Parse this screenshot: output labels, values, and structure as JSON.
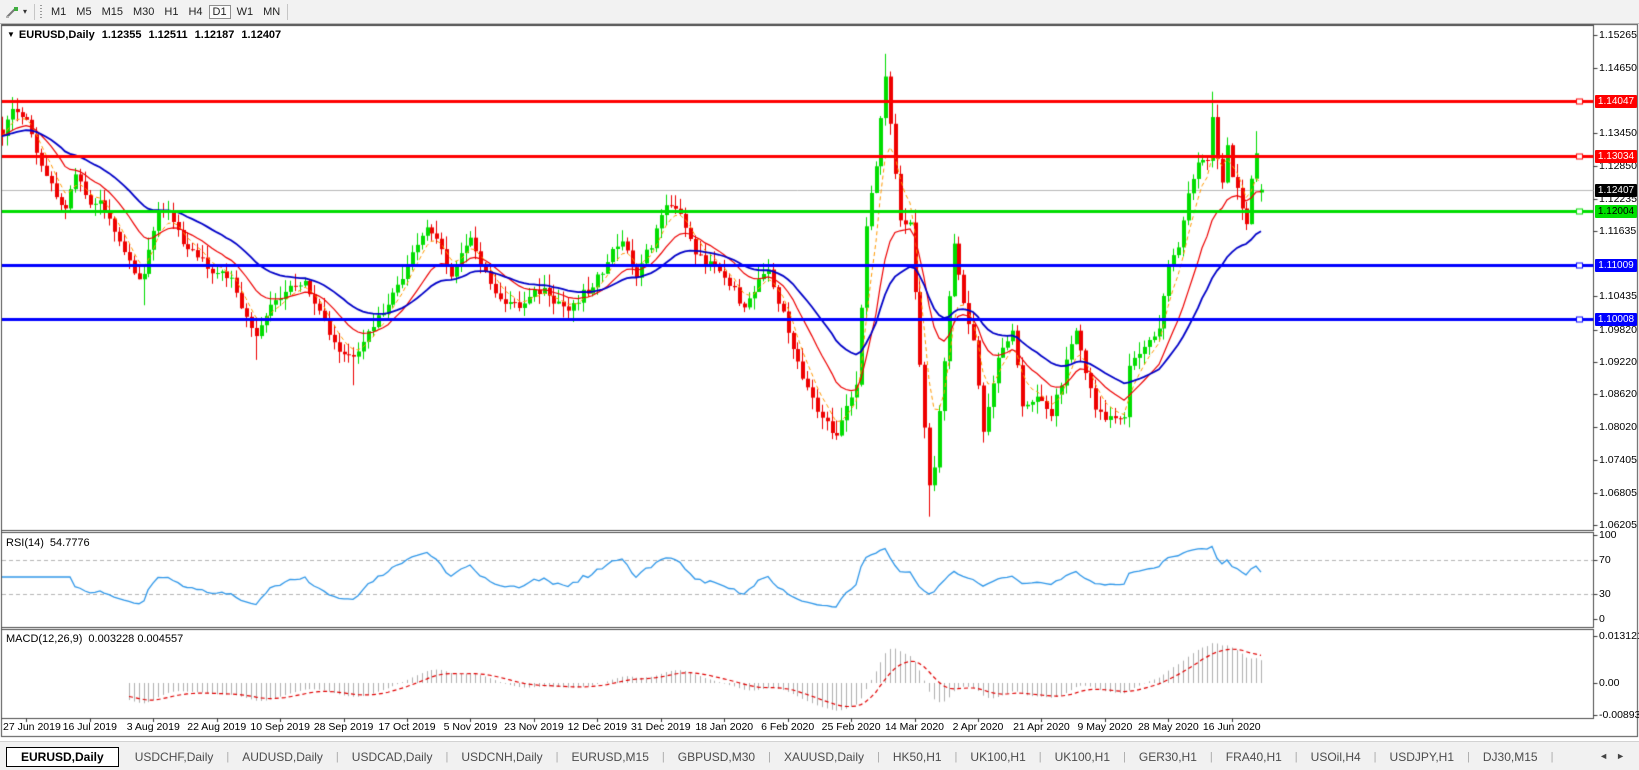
{
  "toolbar": {
    "tool_icon": "draw-tool",
    "timeframes": [
      "M1",
      "M5",
      "M15",
      "M30",
      "H1",
      "H4",
      "D1",
      "W1",
      "MN"
    ],
    "active_timeframe": "D1"
  },
  "chart": {
    "title_symbol": "EURUSD,Daily",
    "ohlc": {
      "open": "1.12355",
      "high": "1.12511",
      "low": "1.12187",
      "close": "1.12407"
    },
    "rsi_label": "RSI(14)",
    "rsi_value": "54.7776",
    "macd_label": "MACD(12,26,9)",
    "macd_values": "0.003228 0.004557"
  },
  "chart_data": {
    "type": "candlestick",
    "symbol": "EURUSD",
    "timeframe": "Daily",
    "title": "EURUSD,Daily 1.12355 1.12511 1.12187 1.12407",
    "bar_count": 259,
    "bars_per_label": 13,
    "first_label_bar": 5,
    "x_labels": [
      "27 Jun 2019",
      "16 Jul 2019",
      "3 Aug 2019",
      "22 Aug 2019",
      "10 Sep 2019",
      "28 Sep 2019",
      "17 Oct 2019",
      "5 Nov 2019",
      "23 Nov 2019",
      "12 Dec 2019",
      "31 Dec 2019",
      "18 Jan 2020",
      "6 Feb 2020",
      "25 Feb 2020",
      "14 Mar 2020",
      "2 Apr 2020",
      "21 Apr 2020",
      "9 May 2020",
      "28 May 2020",
      "16 Jun 2020"
    ],
    "y_axis": {
      "visible_min": 1.061135,
      "visible_max": 1.154345,
      "ticks": [
        "1.15265",
        "1.14650",
        "1.13450",
        "1.12850",
        "1.12235",
        "1.11635",
        "1.10435",
        "1.09820",
        "1.09220",
        "1.08620",
        "1.08020",
        "1.07405",
        "1.06805",
        "1.06205"
      ],
      "badges": [
        {
          "price": "1.14047",
          "bg": "#ff0000",
          "fg": "#ffffff"
        },
        {
          "price": "1.13034",
          "bg": "#ff0000",
          "fg": "#ffffff"
        },
        {
          "price": "1.12407",
          "bg": "#000000",
          "fg": "#ffffff"
        },
        {
          "price": "1.12004",
          "bg": "#00e000",
          "fg": "#000000"
        },
        {
          "price": "1.11009",
          "bg": "#0000ff",
          "fg": "#ffffff"
        },
        {
          "price": "1.10008",
          "bg": "#0000ff",
          "fg": "#ffffff"
        }
      ]
    },
    "hlines": [
      {
        "price": 1.14047,
        "color": "#ff0000",
        "width": 3
      },
      {
        "price": 1.13034,
        "color": "#ff0000",
        "width": 3
      },
      {
        "price": 1.12004,
        "color": "#00dd00",
        "width": 3
      },
      {
        "price": 1.11009,
        "color": "#0000ff",
        "width": 3
      },
      {
        "price": 1.10008,
        "color": "#0000ff",
        "width": 3
      }
    ],
    "current_price": {
      "price": 1.12407,
      "color": "#b8b8b8"
    },
    "candle_colors": {
      "up": "#00dd00",
      "down": "#ee0000"
    },
    "close_anchors": [
      [
        0,
        1.134
      ],
      [
        2,
        1.139
      ],
      [
        5,
        1.137
      ],
      [
        8,
        1.1285
      ],
      [
        11,
        1.1227
      ],
      [
        13,
        1.1206
      ],
      [
        15,
        1.1269
      ],
      [
        18,
        1.1213
      ],
      [
        20,
        1.1221
      ],
      [
        24,
        1.1145
      ],
      [
        28,
        1.1075
      ],
      [
        29,
        1.1085
      ],
      [
        32,
        1.12
      ],
      [
        34,
        1.12
      ],
      [
        37,
        1.114
      ],
      [
        43,
        1.1086
      ],
      [
        47,
        1.1078
      ],
      [
        51,
        1.0985
      ],
      [
        52,
        1.097
      ],
      [
        55,
        1.1028
      ],
      [
        59,
        1.1063
      ],
      [
        62,
        1.1072
      ],
      [
        65,
        1.1017
      ],
      [
        69,
        1.0941
      ],
      [
        72,
        1.0932
      ],
      [
        75,
        1.0979
      ],
      [
        79,
        1.1028
      ],
      [
        84,
        1.1125
      ],
      [
        87,
        1.1171
      ],
      [
        89,
        1.115
      ],
      [
        92,
        1.108
      ],
      [
        96,
        1.1152
      ],
      [
        101,
        1.1049
      ],
      [
        106,
        1.1022
      ],
      [
        111,
        1.1059
      ],
      [
        116,
        1.1017
      ],
      [
        121,
        1.106
      ],
      [
        125,
        1.1131
      ],
      [
        127,
        1.1145
      ],
      [
        130,
        1.1078
      ],
      [
        136,
        1.1212
      ],
      [
        139,
        1.1196
      ],
      [
        142,
        1.1121
      ],
      [
        147,
        1.109
      ],
      [
        152,
        1.1023
      ],
      [
        157,
        1.1093
      ],
      [
        162,
        1.0946
      ],
      [
        167,
        1.083
      ],
      [
        171,
        1.0786
      ],
      [
        175,
        1.088
      ],
      [
        177,
        1.1173
      ],
      [
        179,
        1.1284
      ],
      [
        181,
        1.145
      ],
      [
        183,
        1.127
      ],
      [
        184,
        1.1184
      ],
      [
        186,
        1.118
      ],
      [
        188,
        1.0917
      ],
      [
        190,
        1.0694
      ],
      [
        191,
        1.0727
      ],
      [
        195,
        1.1141
      ],
      [
        197,
        1.1031
      ],
      [
        199,
        1.0962
      ],
      [
        201,
        1.0793
      ],
      [
        204,
        1.093
      ],
      [
        207,
        1.098
      ],
      [
        209,
        1.084
      ],
      [
        212,
        1.0858
      ],
      [
        215,
        1.0822
      ],
      [
        219,
        1.0955
      ],
      [
        220,
        1.098
      ],
      [
        224,
        1.0834
      ],
      [
        228,
        1.0818
      ],
      [
        230,
        1.082
      ],
      [
        231,
        1.0915
      ],
      [
        234,
        1.095
      ],
      [
        237,
        1.0984
      ],
      [
        239,
        1.1101
      ],
      [
        241,
        1.1134
      ],
      [
        243,
        1.1234
      ],
      [
        245,
        1.1291
      ],
      [
        247,
        1.1294
      ],
      [
        248,
        1.1375
      ],
      [
        249,
        1.1298
      ],
      [
        250,
        1.1254
      ],
      [
        251,
        1.1323
      ],
      [
        252,
        1.1264
      ],
      [
        253,
        1.1244
      ],
      [
        254,
        1.1206
      ],
      [
        255,
        1.1177
      ],
      [
        256,
        1.1261
      ],
      [
        257,
        1.1308
      ],
      [
        258,
        1.12407
      ]
    ],
    "spikes": [
      {
        "i": 2,
        "high": 1.1412
      },
      {
        "i": 29,
        "low": 1.1027
      },
      {
        "i": 52,
        "low": 1.0926
      },
      {
        "i": 72,
        "low": 1.0879
      },
      {
        "i": 171,
        "low": 1.0778
      },
      {
        "i": 181,
        "high": 1.1492
      },
      {
        "i": 190,
        "low": 1.0636
      },
      {
        "i": 201,
        "low": 1.0773
      },
      {
        "i": 248,
        "high": 1.1422
      },
      {
        "i": 257,
        "high": 1.1349
      }
    ],
    "last_bar": {
      "open": 1.12355,
      "high": 1.12511,
      "low": 1.12187,
      "close": 1.12407
    },
    "moving_averages": [
      {
        "name": "fast",
        "period": 5,
        "color": "#ff9900",
        "dash": [
          4,
          3
        ],
        "width": 1
      },
      {
        "name": "medium",
        "period": 14,
        "color": "#ee0000",
        "dash": [],
        "width": 1.2
      },
      {
        "name": "slow",
        "period": 30,
        "color": "#0000c8",
        "dash": [],
        "width": 1.8
      }
    ],
    "rsi": {
      "period": 14,
      "value": 54.7776,
      "color": "#2f97e9",
      "level_dash_color": "#b4b4b4",
      "scale": [
        {
          "label": "100",
          "v": 100
        },
        {
          "label": "70",
          "v": 70
        },
        {
          "label": "30",
          "v": 30
        },
        {
          "label": "0",
          "v": 0
        }
      ],
      "dashed_levels": [
        70,
        30
      ]
    },
    "macd": {
      "fast": 12,
      "slow": 26,
      "signal": 9,
      "macd_value": 0.003228,
      "signal_value": 0.004557,
      "hist_color": "#b0b0b0",
      "signal_color": "#e00000",
      "scale": [
        {
          "label": "0.013121",
          "v": 0.013121
        },
        {
          "label": "0.00",
          "v": 0
        },
        {
          "label": "-0.008933",
          "v": -0.008933
        }
      ]
    }
  },
  "bottom_tabs": [
    {
      "label": "EURUSD,Daily",
      "active": true
    },
    {
      "label": "USDCHF,Daily",
      "active": false
    },
    {
      "label": "AUDUSD,Daily",
      "active": false
    },
    {
      "label": "USDCAD,Daily",
      "active": false
    },
    {
      "label": "USDCNH,Daily",
      "active": false
    },
    {
      "label": "EURUSD,M15",
      "active": false
    },
    {
      "label": "GBPUSD,M30",
      "active": false
    },
    {
      "label": "XAUUSD,Daily",
      "active": false
    },
    {
      "label": "HK50,H1",
      "active": false
    },
    {
      "label": "UK100,H1",
      "active": false
    },
    {
      "label": "UK100,H1",
      "active": false
    },
    {
      "label": "GER30,H1",
      "active": false
    },
    {
      "label": "FRA40,H1",
      "active": false
    },
    {
      "label": "USOil,H4",
      "active": false
    },
    {
      "label": "USDJPY,H1",
      "active": false
    },
    {
      "label": "DJ30,M15",
      "active": false
    }
  ],
  "tab_nav": {
    "left": "◄",
    "right": "►"
  }
}
